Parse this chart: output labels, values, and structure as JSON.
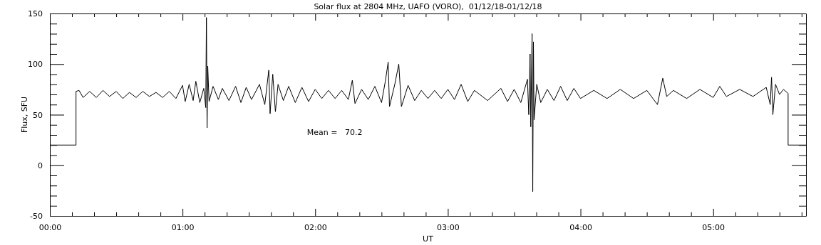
{
  "chart_data": {
    "type": "line",
    "title": "Solar flux at 2804 MHz, UAFO (VORO),  01/12/18-01/12/18",
    "xlabel": "UT",
    "ylabel": "Flux, SFU",
    "annotations": [
      "Mean =   70.2"
    ],
    "xlim": [
      0,
      5.7
    ],
    "ylim": [
      -50,
      150
    ],
    "xticks": [
      {
        "value": 0,
        "label": "00:00"
      },
      {
        "value": 0.1667,
        "label": null
      },
      {
        "value": 0.3333,
        "label": null
      },
      {
        "value": 0.5,
        "label": null
      },
      {
        "value": 0.6667,
        "label": null
      },
      {
        "value": 0.8333,
        "label": null
      },
      {
        "value": 1,
        "label": "01:00"
      },
      {
        "value": 1.1667,
        "label": null
      },
      {
        "value": 1.3333,
        "label": null
      },
      {
        "value": 1.5,
        "label": null
      },
      {
        "value": 1.6667,
        "label": null
      },
      {
        "value": 1.8333,
        "label": null
      },
      {
        "value": 2,
        "label": "02:00"
      },
      {
        "value": 2.1667,
        "label": null
      },
      {
        "value": 2.3333,
        "label": null
      },
      {
        "value": 2.5,
        "label": null
      },
      {
        "value": 2.6667,
        "label": null
      },
      {
        "value": 2.8333,
        "label": null
      },
      {
        "value": 3,
        "label": "03:00"
      },
      {
        "value": 3.1667,
        "label": null
      },
      {
        "value": 3.3333,
        "label": null
      },
      {
        "value": 3.5,
        "label": null
      },
      {
        "value": 3.6667,
        "label": null
      },
      {
        "value": 3.8333,
        "label": null
      },
      {
        "value": 4,
        "label": "04:00"
      },
      {
        "value": 4.1667,
        "label": null
      },
      {
        "value": 4.3333,
        "label": null
      },
      {
        "value": 4.5,
        "label": null
      },
      {
        "value": 4.6667,
        "label": null
      },
      {
        "value": 4.8333,
        "label": null
      },
      {
        "value": 5,
        "label": "05:00"
      },
      {
        "value": 5.1667,
        "label": null
      },
      {
        "value": 5.3333,
        "label": null
      },
      {
        "value": 5.5,
        "label": null
      },
      {
        "value": 5.6667,
        "label": null
      }
    ],
    "yticks": [
      -50,
      {
        "value": -40,
        "label": null
      },
      {
        "value": -30,
        "label": null
      },
      {
        "value": -20,
        "label": null
      },
      {
        "value": -10,
        "label": null
      },
      0,
      {
        "value": 10,
        "label": null
      },
      {
        "value": 20,
        "label": null
      },
      {
        "value": 30,
        "label": null
      },
      {
        "value": 40,
        "label": null
      },
      50,
      {
        "value": 60,
        "label": null
      },
      {
        "value": 70,
        "label": null
      },
      {
        "value": 80,
        "label": null
      },
      {
        "value": 90,
        "label": null
      },
      100,
      {
        "value": 110,
        "label": null
      },
      {
        "value": 120,
        "label": null
      },
      {
        "value": 130,
        "label": null
      },
      {
        "value": 140,
        "label": null
      },
      150
    ],
    "marker": "none",
    "line_style": "solid",
    "x": [
      0,
      0.197,
      0.197,
      0.22,
      0.25,
      0.3,
      0.35,
      0.4,
      0.45,
      0.5,
      0.55,
      0.6,
      0.65,
      0.7,
      0.75,
      0.8,
      0.85,
      0.9,
      0.95,
      1.0,
      1.02,
      1.05,
      1.08,
      1.1,
      1.13,
      1.16,
      1.175,
      1.18,
      1.185,
      1.19,
      1.2,
      1.23,
      1.27,
      1.3,
      1.35,
      1.4,
      1.44,
      1.48,
      1.52,
      1.58,
      1.62,
      1.65,
      1.66,
      1.68,
      1.7,
      1.72,
      1.76,
      1.8,
      1.85,
      1.9,
      1.95,
      2.0,
      2.05,
      2.1,
      2.15,
      2.2,
      2.25,
      2.28,
      2.3,
      2.35,
      2.4,
      2.45,
      2.5,
      2.53,
      2.55,
      2.56,
      2.6,
      2.63,
      2.65,
      2.7,
      2.75,
      2.8,
      2.85,
      2.9,
      2.95,
      3.0,
      3.05,
      3.1,
      3.15,
      3.2,
      3.3,
      3.4,
      3.45,
      3.5,
      3.55,
      3.6,
      3.61,
      3.62,
      3.625,
      3.635,
      3.64,
      3.645,
      3.65,
      3.67,
      3.7,
      3.75,
      3.8,
      3.85,
      3.9,
      3.95,
      4.0,
      4.1,
      4.2,
      4.3,
      4.4,
      4.5,
      4.58,
      4.62,
      4.65,
      4.7,
      4.8,
      4.9,
      5.0,
      5.05,
      5.1,
      5.2,
      5.3,
      5.4,
      5.43,
      5.44,
      5.45,
      5.47,
      5.5,
      5.53,
      5.565,
      5.565,
      5.7
    ],
    "series": [
      {
        "color": "#000000",
        "values": [
          20,
          20,
          73,
          74,
          67,
          73,
          67,
          74,
          68,
          73,
          66,
          72,
          67,
          73,
          68,
          72,
          67,
          73,
          66,
          79,
          63,
          80,
          64,
          83,
          62,
          76,
          57,
          146,
          37,
          98,
          63,
          78,
          65,
          76,
          64,
          78,
          62,
          77,
          65,
          80,
          60,
          94,
          51,
          90,
          53,
          80,
          64,
          78,
          62,
          77,
          63,
          75,
          66,
          74,
          66,
          74,
          65,
          84,
          61,
          75,
          65,
          78,
          62,
          84,
          102,
          58,
          80,
          100,
          58,
          79,
          64,
          74,
          66,
          74,
          66,
          75,
          65,
          80,
          63,
          74,
          64,
          76,
          63,
          75,
          62,
          85,
          50,
          110,
          38,
          130,
          -26,
          122,
          45,
          80,
          62,
          75,
          64,
          78,
          64,
          76,
          66,
          74,
          66,
          75,
          66,
          74,
          60,
          86,
          68,
          74,
          66,
          75,
          67,
          78,
          68,
          75,
          68,
          77,
          60,
          87,
          50,
          80,
          70,
          75,
          71,
          20,
          20
        ]
      }
    ]
  }
}
